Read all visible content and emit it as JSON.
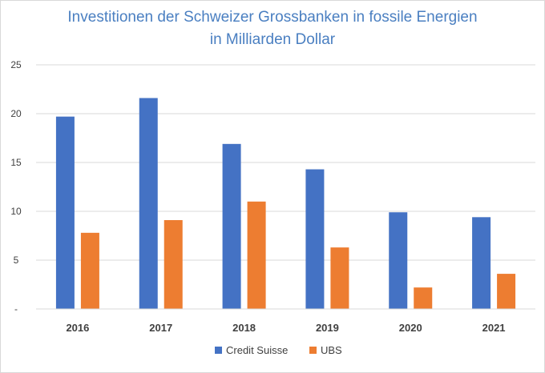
{
  "chart_data": {
    "type": "bar",
    "title": "Investitionen der Schweizer Grossbanken in fossile Energien",
    "subtitle": "in Milliarden Dollar",
    "xlabel": "",
    "ylabel": "",
    "ylim": [
      0,
      25
    ],
    "yticks": [
      "-",
      "5",
      "10",
      "15",
      "20",
      "25"
    ],
    "categories": [
      "2016",
      "2017",
      "2018",
      "2019",
      "2020",
      "2021"
    ],
    "series": [
      {
        "name": "Credit Suisse",
        "color": "#4472c4",
        "values": [
          19.7,
          21.6,
          16.9,
          14.3,
          9.9,
          9.4
        ]
      },
      {
        "name": "UBS",
        "color": "#ed7d31",
        "values": [
          7.8,
          9.1,
          11.0,
          6.3,
          2.2,
          3.6
        ]
      }
    ],
    "grid": true,
    "legend": "bottom"
  }
}
